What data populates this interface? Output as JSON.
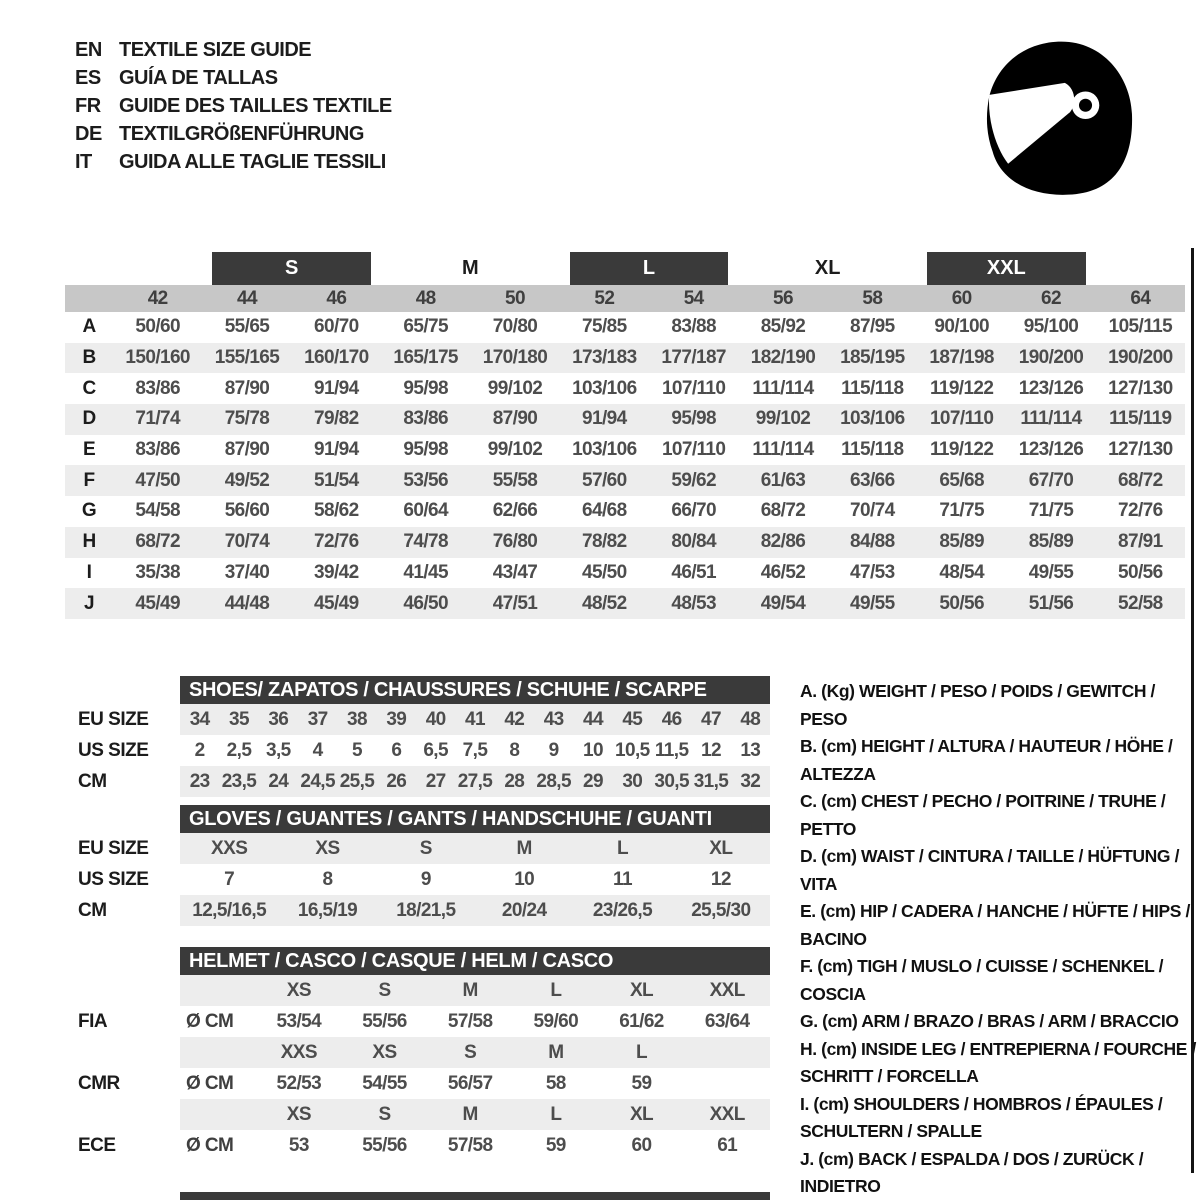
{
  "header": {
    "languages": [
      {
        "code": "EN",
        "title": "TEXTILE SIZE GUIDE"
      },
      {
        "code": "ES",
        "title": "GUÍA DE TALLAS"
      },
      {
        "code": "FR",
        "title": "GUIDE DES TAILLES TEXTILE"
      },
      {
        "code": "DE",
        "title": "TEXTILGRÖßENFÜHRUNG"
      },
      {
        "code": "IT",
        "title": "GUIDA ALLE TAGLIE TESSILI"
      }
    ],
    "helmet_icon": "racing-helmet"
  },
  "colors": {
    "dark_bar": "#3a3a3a",
    "size_band": "#c7c7c7",
    "alt_row": "#ededed",
    "value_text": "#4d4d4d"
  },
  "size_table": {
    "group_headers": [
      {
        "label": "S",
        "boxed": true
      },
      {
        "label": "M",
        "boxed": false
      },
      {
        "label": "L",
        "boxed": true
      },
      {
        "label": "XL",
        "boxed": false
      },
      {
        "label": "XXL",
        "boxed": true
      }
    ],
    "sizes": [
      "42",
      "44",
      "46",
      "48",
      "50",
      "52",
      "54",
      "56",
      "58",
      "60",
      "62",
      "64"
    ],
    "rows": [
      {
        "letter": "A",
        "values": [
          "50/60",
          "55/65",
          "60/70",
          "65/75",
          "70/80",
          "75/85",
          "83/88",
          "85/92",
          "87/95",
          "90/100",
          "95/100",
          "105/115"
        ]
      },
      {
        "letter": "B",
        "values": [
          "150/160",
          "155/165",
          "160/170",
          "165/175",
          "170/180",
          "173/183",
          "177/187",
          "182/190",
          "185/195",
          "187/198",
          "190/200",
          "190/200"
        ]
      },
      {
        "letter": "C",
        "values": [
          "83/86",
          "87/90",
          "91/94",
          "95/98",
          "99/102",
          "103/106",
          "107/110",
          "111/114",
          "115/118",
          "119/122",
          "123/126",
          "127/130"
        ]
      },
      {
        "letter": "D",
        "values": [
          "71/74",
          "75/78",
          "79/82",
          "83/86",
          "87/90",
          "91/94",
          "95/98",
          "99/102",
          "103/106",
          "107/110",
          "111/114",
          "115/119"
        ]
      },
      {
        "letter": "E",
        "values": [
          "83/86",
          "87/90",
          "91/94",
          "95/98",
          "99/102",
          "103/106",
          "107/110",
          "111/114",
          "115/118",
          "119/122",
          "123/126",
          "127/130"
        ]
      },
      {
        "letter": "F",
        "values": [
          "47/50",
          "49/52",
          "51/54",
          "53/56",
          "55/58",
          "57/60",
          "59/62",
          "61/63",
          "63/66",
          "65/68",
          "67/70",
          "68/72"
        ]
      },
      {
        "letter": "G",
        "values": [
          "54/58",
          "56/60",
          "58/62",
          "60/64",
          "62/66",
          "64/68",
          "66/70",
          "68/72",
          "70/74",
          "71/75",
          "71/75",
          "72/76"
        ]
      },
      {
        "letter": "H",
        "values": [
          "68/72",
          "70/74",
          "72/76",
          "74/78",
          "76/80",
          "78/82",
          "80/84",
          "82/86",
          "84/88",
          "85/89",
          "85/89",
          "87/91"
        ]
      },
      {
        "letter": "I",
        "values": [
          "35/38",
          "37/40",
          "39/42",
          "41/45",
          "43/47",
          "45/50",
          "46/51",
          "46/52",
          "47/53",
          "48/54",
          "49/55",
          "50/56"
        ]
      },
      {
        "letter": "J",
        "values": [
          "45/49",
          "44/48",
          "45/49",
          "46/50",
          "47/51",
          "48/52",
          "48/53",
          "49/54",
          "49/55",
          "50/56",
          "51/56",
          "52/58"
        ]
      }
    ]
  },
  "shoes": {
    "title": "SHOES/ ZAPATOS / CHAUSSURES / SCHUHE / SCARPE",
    "row_labels": [
      "EU SIZE",
      "US SIZE",
      "CM"
    ],
    "eu": [
      "34",
      "35",
      "36",
      "37",
      "38",
      "39",
      "40",
      "41",
      "42",
      "43",
      "44",
      "45",
      "46",
      "47",
      "48"
    ],
    "us": [
      "2",
      "2,5",
      "3,5",
      "4",
      "5",
      "6",
      "6,5",
      "7,5",
      "8",
      "9",
      "10",
      "10,5",
      "11,5",
      "12",
      "13"
    ],
    "cm": [
      "23",
      "23,5",
      "24",
      "24,5",
      "25,5",
      "26",
      "27",
      "27,5",
      "28",
      "28,5",
      "29",
      "30",
      "30,5",
      "31,5",
      "32"
    ]
  },
  "gloves": {
    "title": "GLOVES / GUANTES / GANTS / HANDSCHUHE / GUANTI",
    "row_labels": [
      "EU SIZE",
      "US SIZE",
      "CM"
    ],
    "eu": [
      "XXS",
      "XS",
      "S",
      "M",
      "L",
      "XL"
    ],
    "us": [
      "7",
      "8",
      "9",
      "10",
      "11",
      "12"
    ],
    "cm": [
      "12,5/16,5",
      "16,5/19",
      "18/21,5",
      "20/24",
      "23/26,5",
      "25,5/30"
    ]
  },
  "helmet": {
    "title": "HELMET / CASCO / CASQUE / HELM / CASCO",
    "unit": "Ø CM",
    "sections": [
      {
        "label": "FIA",
        "sizes": [
          "XS",
          "S",
          "M",
          "L",
          "XL",
          "XXL"
        ],
        "values": [
          "53/54",
          "55/56",
          "57/58",
          "59/60",
          "61/62",
          "63/64"
        ]
      },
      {
        "label": "CMR",
        "sizes": [
          "XXS",
          "XS",
          "S",
          "M",
          "L",
          ""
        ],
        "values": [
          "52/53",
          "54/55",
          "56/57",
          "58",
          "59",
          ""
        ]
      },
      {
        "label": "ECE",
        "sizes": [
          "XS",
          "S",
          "M",
          "L",
          "XL",
          "XXL"
        ],
        "values": [
          "53",
          "55/56",
          "57/58",
          "59",
          "60",
          "61"
        ]
      }
    ]
  },
  "legend": {
    "items": [
      "A. (Kg) WEIGHT / PESO / POIDS / GEWITCH / PESO",
      "B. (cm) HEIGHT / ALTURA / HAUTEUR / HÖHE / ALTEZZA",
      "C. (cm) CHEST / PECHO / POITRINE / TRUHE / PETTO",
      "D. (cm) WAIST / CINTURA / TAILLE / HÜFTUNG / VITA",
      "E. (cm) HIP / CADERA / HANCHE / HÜFTE / HIPS /  BACINO",
      "F. (cm) TIGH / MUSLO / CUISSE / SCHENKEL / COSCIA",
      "G. (cm) ARM  / BRAZO / BRAS / ARM / BRACCIO",
      "H. (cm) INSIDE LEG / ENTREPIERNA / FOURCHE / SCHRITT / FORCELLA",
      "I.  (cm) SHOULDERS / HOMBROS / ÉPAULES / SCHULTERN / SPALLE",
      "J. (cm) BACK / ESPALDA / DOS / ZURÜCK / INDIETRO"
    ]
  }
}
